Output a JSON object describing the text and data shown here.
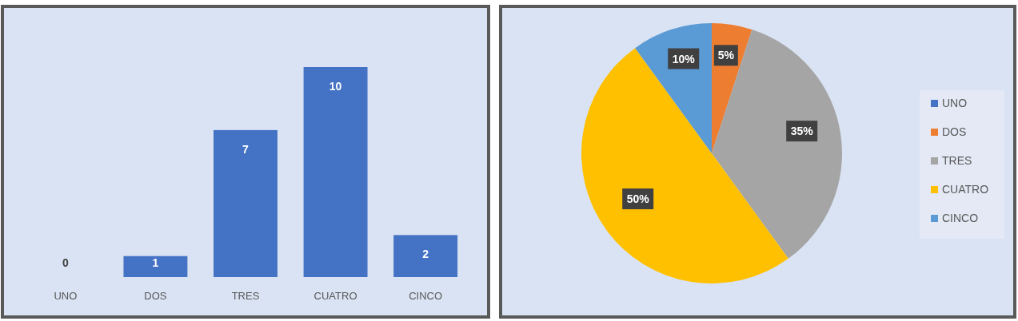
{
  "chart_data": [
    {
      "type": "bar",
      "categories": [
        "UNO",
        "DOS",
        "TRES",
        "CUATRO",
        "CINCO"
      ],
      "values": [
        0,
        1,
        7,
        10,
        2
      ],
      "color": "#4472c4",
      "data_labels": true,
      "tick_labels": "x"
    },
    {
      "type": "pie",
      "categories": [
        "UNO",
        "DOS",
        "TRES",
        "CUATRO",
        "CINCO"
      ],
      "values": [
        0,
        5,
        35,
        50,
        10
      ],
      "colors": [
        "#4472c4",
        "#ed7d31",
        "#a5a5a5",
        "#ffc000",
        "#5b9bd5"
      ],
      "value_labels": [
        null,
        "5%",
        "35%",
        "50%",
        "10%"
      ],
      "legend": "right"
    }
  ]
}
